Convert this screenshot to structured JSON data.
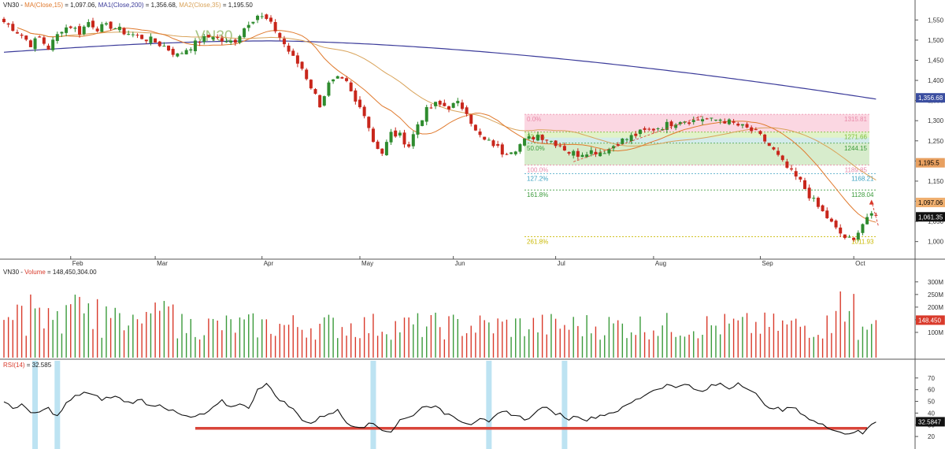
{
  "panels": {
    "price": {
      "legend": [
        {
          "text": "VN30 - ",
          "color": "#222222"
        },
        {
          "text": "MA(Close,15)",
          "color": "#e07a2e"
        },
        {
          "text": " = 1,097.06, ",
          "color": "#222222"
        },
        {
          "text": "MA1(Close,200)",
          "color": "#3b3b9a"
        },
        {
          "text": " = 1,356.68, ",
          "color": "#222222"
        },
        {
          "text": "MA2(Close,35)",
          "color": "#d9a35a"
        },
        {
          "text": " = 1,195.50",
          "color": "#222222"
        }
      ],
      "watermark": "VN30"
    },
    "volume": {
      "legend": [
        {
          "text": "VN30 - ",
          "color": "#222222"
        },
        {
          "text": "Volume",
          "color": "#d93a2b"
        },
        {
          "text": " = 148,450,304.00",
          "color": "#222222"
        }
      ]
    },
    "rsi": {
      "legend": [
        {
          "text": "RSI(14)",
          "color": "#d93a2b"
        },
        {
          "text": " = 32.585",
          "color": "#222222"
        }
      ]
    }
  },
  "chart_data": [
    {
      "type": "candlestick",
      "name": "price",
      "ylim": [
        970,
        1580
      ],
      "y_ticks": [
        {
          "label": "1,550",
          "value": 1550
        },
        {
          "label": "1,500",
          "value": 1500
        },
        {
          "label": "1,450",
          "value": 1450
        },
        {
          "label": "1,400",
          "value": 1400
        },
        {
          "label": "1,350",
          "value": 1350
        },
        {
          "label": "1,300",
          "value": 1300
        },
        {
          "label": "1,250",
          "value": 1250
        },
        {
          "label": "1,200",
          "value": 1200
        },
        {
          "label": "1,150",
          "value": 1150
        },
        {
          "label": "1,100",
          "value": 1100
        },
        {
          "label": "1,050",
          "value": 1050
        },
        {
          "label": "1,000",
          "value": 1000
        }
      ],
      "x_months": [
        {
          "label": "Feb",
          "bar": 15
        },
        {
          "label": "Mar",
          "bar": 34
        },
        {
          "label": "Apr",
          "bar": 58
        },
        {
          "label": "May",
          "bar": 80
        },
        {
          "label": "Jun",
          "bar": 101
        },
        {
          "label": "Jul",
          "bar": 124
        },
        {
          "label": "Aug",
          "bar": 146
        },
        {
          "label": "Sep",
          "bar": 170
        },
        {
          "label": "Oct",
          "bar": 191
        }
      ],
      "series": [
        {
          "name": "MA(Close,15)",
          "color": "#e07a2e",
          "last": 1097.06
        },
        {
          "name": "MA1(Close,200)",
          "color": "#3b3b9a",
          "last": 1356.68
        },
        {
          "name": "MA2(Close,35)",
          "color": "#d9a35a",
          "last": 1195.5
        }
      ],
      "fib_levels": [
        {
          "label": "0.0%",
          "value": 1315.81,
          "value_label": "1315.81",
          "color": "#e88aa8"
        },
        {
          "label": "23.6%",
          "value": 1271.66,
          "value_label": "1271.66",
          "color": "#7bbf3a"
        },
        {
          "label": "50.0%",
          "value": 1244.15,
          "value_label": "1244.15",
          "color": "#3a9a3a"
        },
        {
          "label": "100.0%",
          "value": 1189.85,
          "value_label": "1189.85",
          "color": "#e88aa8"
        },
        {
          "label": "127.2%",
          "value": 1168.21,
          "value_label": "1168.21",
          "color": "#3aa0c0"
        },
        {
          "label": "161.8%",
          "value": 1128.04,
          "value_label": "1128.04",
          "color": "#3a9a3a"
        },
        {
          "label": "261.8%",
          "value": 1011.93,
          "value_label": "1011.93",
          "color": "#c9b800"
        }
      ],
      "price_tags": [
        {
          "text": "1,356.68",
          "value": 1356.68,
          "bg": "#3b4ea0",
          "fg": "#ffffff"
        },
        {
          "text": "1,195.5",
          "value": 1195.5,
          "bg": "#e8a060",
          "fg": "#000000"
        },
        {
          "text": "1,097.06",
          "value": 1097.06,
          "bg": "#f0b070",
          "fg": "#000000"
        },
        {
          "text": "1,061.35",
          "value": 1061.35,
          "bg": "#111111",
          "fg": "#ffffff"
        }
      ],
      "knots": [
        [
          0,
          1545
        ],
        [
          2,
          1530
        ],
        [
          4,
          1512
        ],
        [
          6,
          1490
        ],
        [
          8,
          1505
        ],
        [
          10,
          1480
        ],
        [
          13,
          1528
        ],
        [
          15,
          1535
        ],
        [
          17,
          1520
        ],
        [
          19,
          1545
        ],
        [
          21,
          1530
        ],
        [
          24,
          1535
        ],
        [
          27,
          1520
        ],
        [
          30,
          1510
        ],
        [
          33,
          1500
        ],
        [
          36,
          1485
        ],
        [
          39,
          1462
        ],
        [
          41,
          1478
        ],
        [
          44,
          1498
        ],
        [
          47,
          1512
        ],
        [
          50,
          1492
        ],
        [
          52,
          1500
        ],
        [
          55,
          1545
        ],
        [
          57,
          1562
        ],
        [
          59,
          1550
        ],
        [
          61,
          1525
        ],
        [
          63,
          1490
        ],
        [
          65,
          1455
        ],
        [
          67,
          1430
        ],
        [
          69,
          1385
        ],
        [
          71,
          1340
        ],
        [
          73,
          1390
        ],
        [
          75,
          1402
        ],
        [
          77,
          1392
        ],
        [
          79,
          1345
        ],
        [
          81,
          1320
        ],
        [
          83,
          1250
        ],
        [
          85,
          1220
        ],
        [
          87,
          1268
        ],
        [
          89,
          1262
        ],
        [
          91,
          1238
        ],
        [
          93,
          1292
        ],
        [
          95,
          1325
        ],
        [
          97,
          1340
        ],
        [
          100,
          1335
        ],
        [
          102,
          1342
        ],
        [
          104,
          1325
        ],
        [
          106,
          1272
        ],
        [
          108,
          1250
        ],
        [
          110,
          1242
        ],
        [
          112,
          1222
        ],
        [
          115,
          1232
        ],
        [
          117,
          1250
        ],
        [
          120,
          1265
        ],
        [
          123,
          1250
        ],
        [
          125,
          1240
        ],
        [
          127,
          1222
        ],
        [
          129,
          1217
        ],
        [
          131,
          1225
        ],
        [
          134,
          1223
        ],
        [
          136,
          1230
        ],
        [
          138,
          1247
        ],
        [
          140,
          1255
        ],
        [
          143,
          1270
        ],
        [
          146,
          1280
        ],
        [
          149,
          1290
        ],
        [
          152,
          1302
        ],
        [
          155,
          1300
        ],
        [
          157,
          1306
        ],
        [
          159,
          1300
        ],
        [
          161,
          1304
        ],
        [
          163,
          1296
        ],
        [
          165,
          1288
        ],
        [
          167,
          1280
        ],
        [
          169,
          1270
        ],
        [
          171,
          1250
        ],
        [
          173,
          1225
        ],
        [
          175,
          1195
        ],
        [
          177,
          1170
        ],
        [
          179,
          1148
        ],
        [
          181,
          1115
        ],
        [
          183,
          1085
        ],
        [
          185,
          1060
        ],
        [
          187,
          1030
        ],
        [
          189,
          1010
        ],
        [
          191,
          1000
        ],
        [
          192,
          1030
        ],
        [
          194,
          1061.35
        ]
      ]
    },
    {
      "type": "bar",
      "name": "volume",
      "ylim": [
        0,
        340
      ],
      "y_ticks": [
        {
          "label": "300M",
          "value": 300
        },
        {
          "label": "250M",
          "value": 250
        },
        {
          "label": "200M",
          "value": 200
        },
        {
          "label": "150M",
          "value": 150
        },
        {
          "label": "100M",
          "value": 100
        }
      ],
      "last_tag": {
        "text": "148.450",
        "value": 148.45,
        "bg": "#d93a2b",
        "fg": "#ffffff"
      },
      "colors": {
        "up": "#3a9a3a",
        "down": "#d93a2b"
      }
    },
    {
      "type": "line",
      "name": "rsi",
      "ylim": [
        12,
        82
      ],
      "y_ticks": [
        {
          "label": "70",
          "value": 70
        },
        {
          "label": "60",
          "value": 60
        },
        {
          "label": "50",
          "value": 50
        },
        {
          "label": "40",
          "value": 40
        },
        {
          "label": "30",
          "value": 30
        },
        {
          "label": "20",
          "value": 20
        }
      ],
      "last_tag": {
        "text": "32.5847",
        "value": 32.5847,
        "bg": "#111111",
        "fg": "#ffffff"
      },
      "support_level": 27,
      "support_range_bars": [
        43,
        194
      ],
      "highlight_bars": [
        7,
        12,
        83,
        109,
        126
      ],
      "knots": [
        [
          0,
          49
        ],
        [
          2,
          44
        ],
        [
          4,
          48
        ],
        [
          6,
          39
        ],
        [
          8,
          41
        ],
        [
          10,
          44
        ],
        [
          12,
          37
        ],
        [
          14,
          48
        ],
        [
          16,
          54
        ],
        [
          18,
          58
        ],
        [
          20,
          55
        ],
        [
          22,
          52
        ],
        [
          25,
          54
        ],
        [
          28,
          49
        ],
        [
          31,
          51
        ],
        [
          33,
          46
        ],
        [
          35,
          48
        ],
        [
          37,
          43
        ],
        [
          40,
          38
        ],
        [
          42,
          36
        ],
        [
          45,
          39
        ],
        [
          47,
          44
        ],
        [
          49,
          50
        ],
        [
          51,
          45
        ],
        [
          53,
          49
        ],
        [
          55,
          43
        ],
        [
          57,
          61
        ],
        [
          59,
          65
        ],
        [
          61,
          55
        ],
        [
          63,
          49
        ],
        [
          65,
          43
        ],
        [
          67,
          35
        ],
        [
          69,
          31
        ],
        [
          71,
          36
        ],
        [
          73,
          40
        ],
        [
          75,
          42
        ],
        [
          77,
          32
        ],
        [
          79,
          29
        ],
        [
          81,
          29
        ],
        [
          83,
          31
        ],
        [
          85,
          26
        ],
        [
          87,
          24
        ],
        [
          89,
          34
        ],
        [
          91,
          36
        ],
        [
          93,
          42
        ],
        [
          95,
          47
        ],
        [
          97,
          45
        ],
        [
          99,
          40
        ],
        [
          101,
          38
        ],
        [
          103,
          33
        ],
        [
          105,
          31
        ],
        [
          107,
          36
        ],
        [
          109,
          31
        ],
        [
          111,
          39
        ],
        [
          113,
          41
        ],
        [
          115,
          38
        ],
        [
          117,
          35
        ],
        [
          119,
          38
        ],
        [
          121,
          46
        ],
        [
          123,
          41
        ],
        [
          125,
          39
        ],
        [
          127,
          35
        ],
        [
          129,
          38
        ],
        [
          131,
          34
        ],
        [
          133,
          37
        ],
        [
          135,
          39
        ],
        [
          137,
          41
        ],
        [
          139,
          44
        ],
        [
          141,
          49
        ],
        [
          143,
          53
        ],
        [
          145,
          58
        ],
        [
          147,
          61
        ],
        [
          149,
          64
        ],
        [
          151,
          62
        ],
        [
          153,
          66
        ],
        [
          155,
          60
        ],
        [
          157,
          58
        ],
        [
          159,
          63
        ],
        [
          161,
          65
        ],
        [
          163,
          61
        ],
        [
          165,
          66
        ],
        [
          167,
          62
        ],
        [
          169,
          56
        ],
        [
          171,
          46
        ],
        [
          173,
          45
        ],
        [
          175,
          42
        ],
        [
          177,
          45
        ],
        [
          179,
          41
        ],
        [
          181,
          35
        ],
        [
          183,
          31
        ],
        [
          185,
          28
        ],
        [
          187,
          26
        ],
        [
          189,
          22
        ],
        [
          191,
          24
        ],
        [
          192,
          26
        ],
        [
          193,
          21
        ],
        [
          194,
          27
        ],
        [
          196,
          32.5847
        ]
      ]
    }
  ]
}
